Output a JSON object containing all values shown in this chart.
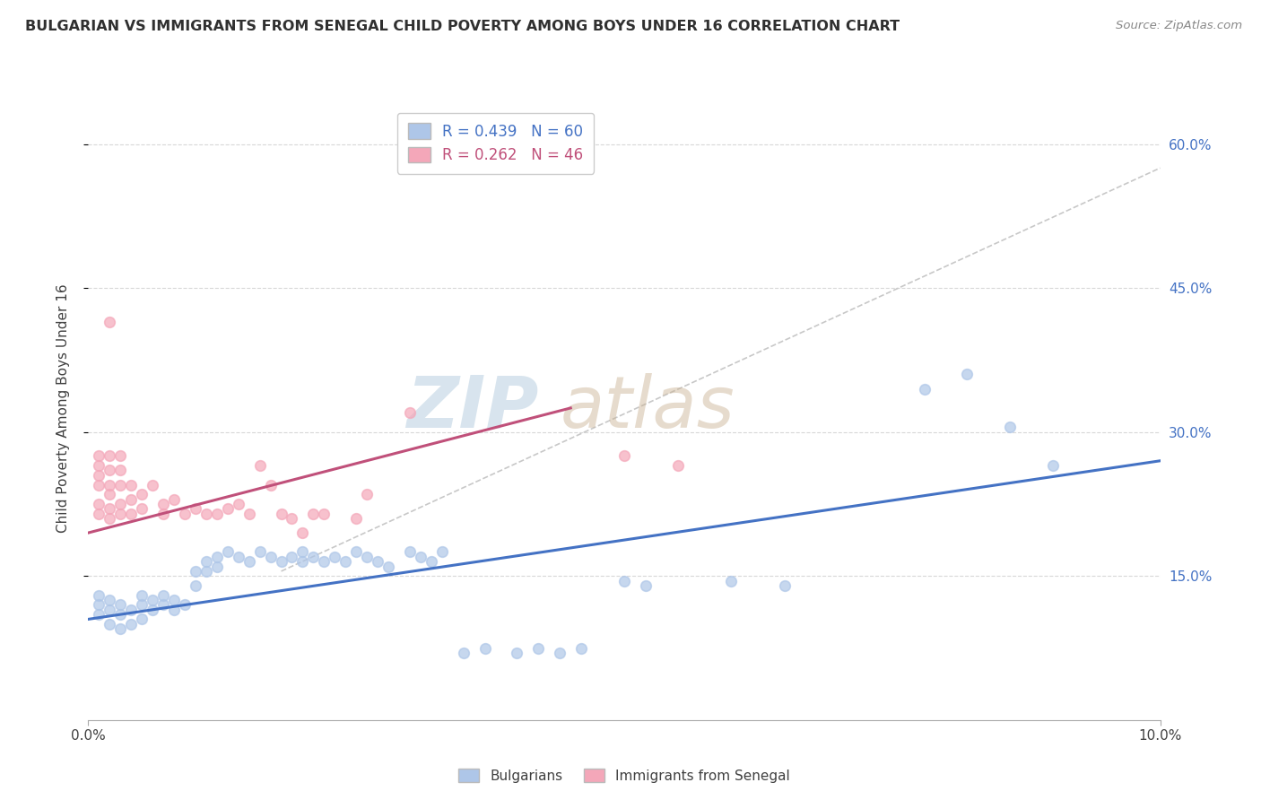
{
  "title": "BULGARIAN VS IMMIGRANTS FROM SENEGAL CHILD POVERTY AMONG BOYS UNDER 16 CORRELATION CHART",
  "source": "Source: ZipAtlas.com",
  "ylabel": "Child Poverty Among Boys Under 16",
  "y_tick_labels": [
    "15.0%",
    "30.0%",
    "45.0%",
    "60.0%"
  ],
  "y_tick_values": [
    0.15,
    0.3,
    0.45,
    0.6
  ],
  "x_range": [
    0.0,
    0.1
  ],
  "y_range": [
    0.0,
    0.65
  ],
  "x_tick_labels": [
    "0.0%",
    "10.0%"
  ],
  "x_tick_values": [
    0.0,
    0.1
  ],
  "legend_entries": [
    {
      "label": "R = 0.439   N = 60",
      "color": "#aec6e8"
    },
    {
      "label": "R = 0.262   N = 46",
      "color": "#f4a7b9"
    }
  ],
  "legend_bottom": [
    "Bulgarians",
    "Immigrants from Senegal"
  ],
  "bulgarians_scatter": [
    [
      0.001,
      0.13
    ],
    [
      0.001,
      0.12
    ],
    [
      0.001,
      0.11
    ],
    [
      0.002,
      0.125
    ],
    [
      0.002,
      0.115
    ],
    [
      0.002,
      0.1
    ],
    [
      0.003,
      0.12
    ],
    [
      0.003,
      0.11
    ],
    [
      0.003,
      0.095
    ],
    [
      0.004,
      0.115
    ],
    [
      0.004,
      0.1
    ],
    [
      0.005,
      0.13
    ],
    [
      0.005,
      0.12
    ],
    [
      0.005,
      0.105
    ],
    [
      0.006,
      0.125
    ],
    [
      0.006,
      0.115
    ],
    [
      0.007,
      0.13
    ],
    [
      0.007,
      0.12
    ],
    [
      0.008,
      0.125
    ],
    [
      0.008,
      0.115
    ],
    [
      0.009,
      0.12
    ],
    [
      0.01,
      0.155
    ],
    [
      0.01,
      0.14
    ],
    [
      0.011,
      0.165
    ],
    [
      0.011,
      0.155
    ],
    [
      0.012,
      0.17
    ],
    [
      0.012,
      0.16
    ],
    [
      0.013,
      0.175
    ],
    [
      0.014,
      0.17
    ],
    [
      0.015,
      0.165
    ],
    [
      0.016,
      0.175
    ],
    [
      0.017,
      0.17
    ],
    [
      0.018,
      0.165
    ],
    [
      0.019,
      0.17
    ],
    [
      0.02,
      0.175
    ],
    [
      0.02,
      0.165
    ],
    [
      0.021,
      0.17
    ],
    [
      0.022,
      0.165
    ],
    [
      0.023,
      0.17
    ],
    [
      0.024,
      0.165
    ],
    [
      0.025,
      0.175
    ],
    [
      0.026,
      0.17
    ],
    [
      0.027,
      0.165
    ],
    [
      0.028,
      0.16
    ],
    [
      0.03,
      0.175
    ],
    [
      0.031,
      0.17
    ],
    [
      0.032,
      0.165
    ],
    [
      0.033,
      0.175
    ],
    [
      0.035,
      0.07
    ],
    [
      0.037,
      0.075
    ],
    [
      0.04,
      0.07
    ],
    [
      0.042,
      0.075
    ],
    [
      0.044,
      0.07
    ],
    [
      0.046,
      0.075
    ],
    [
      0.05,
      0.145
    ],
    [
      0.052,
      0.14
    ],
    [
      0.06,
      0.145
    ],
    [
      0.065,
      0.14
    ],
    [
      0.078,
      0.345
    ],
    [
      0.082,
      0.36
    ],
    [
      0.086,
      0.305
    ],
    [
      0.09,
      0.265
    ]
  ],
  "senegal_scatter": [
    [
      0.001,
      0.215
    ],
    [
      0.001,
      0.225
    ],
    [
      0.001,
      0.245
    ],
    [
      0.001,
      0.255
    ],
    [
      0.001,
      0.265
    ],
    [
      0.001,
      0.275
    ],
    [
      0.002,
      0.21
    ],
    [
      0.002,
      0.22
    ],
    [
      0.002,
      0.235
    ],
    [
      0.002,
      0.245
    ],
    [
      0.002,
      0.26
    ],
    [
      0.002,
      0.275
    ],
    [
      0.002,
      0.415
    ],
    [
      0.003,
      0.215
    ],
    [
      0.003,
      0.225
    ],
    [
      0.003,
      0.245
    ],
    [
      0.003,
      0.26
    ],
    [
      0.003,
      0.275
    ],
    [
      0.004,
      0.215
    ],
    [
      0.004,
      0.23
    ],
    [
      0.004,
      0.245
    ],
    [
      0.005,
      0.22
    ],
    [
      0.005,
      0.235
    ],
    [
      0.006,
      0.245
    ],
    [
      0.007,
      0.215
    ],
    [
      0.007,
      0.225
    ],
    [
      0.008,
      0.23
    ],
    [
      0.009,
      0.215
    ],
    [
      0.01,
      0.22
    ],
    [
      0.011,
      0.215
    ],
    [
      0.012,
      0.215
    ],
    [
      0.013,
      0.22
    ],
    [
      0.014,
      0.225
    ],
    [
      0.015,
      0.215
    ],
    [
      0.016,
      0.265
    ],
    [
      0.017,
      0.245
    ],
    [
      0.018,
      0.215
    ],
    [
      0.019,
      0.21
    ],
    [
      0.02,
      0.195
    ],
    [
      0.021,
      0.215
    ],
    [
      0.022,
      0.215
    ],
    [
      0.025,
      0.21
    ],
    [
      0.026,
      0.235
    ],
    [
      0.03,
      0.32
    ],
    [
      0.05,
      0.275
    ],
    [
      0.055,
      0.265
    ]
  ],
  "blue_line_x": [
    0.0,
    0.1
  ],
  "blue_line_y": [
    0.105,
    0.27
  ],
  "pink_line_x": [
    0.0,
    0.045
  ],
  "pink_line_y": [
    0.195,
    0.325
  ],
  "dashed_line_x": [
    0.018,
    0.1
  ],
  "dashed_line_y": [
    0.155,
    0.575
  ],
  "scatter_color_blue": "#aec6e8",
  "scatter_color_pink": "#f4a7b9",
  "line_color_blue": "#4472c4",
  "line_color_pink": "#c0507a",
  "dashed_line_color": "#c8c8c8",
  "background_color": "#ffffff",
  "grid_color": "#d8d8d8",
  "title_color": "#303030",
  "axis_label_color": "#4472c4"
}
